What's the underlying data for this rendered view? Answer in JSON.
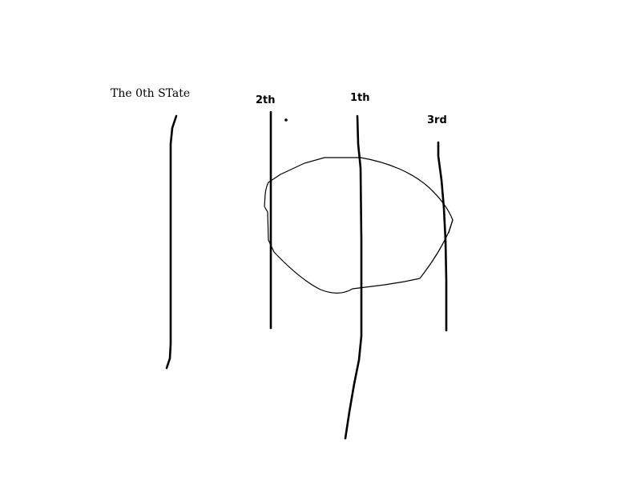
{
  "labels": {
    "state0": "The 0th STate",
    "state2": "2th",
    "state1": "1th",
    "state3": "3rd"
  },
  "colors": {
    "background": "#ffffff",
    "ink": "#000000"
  }
}
